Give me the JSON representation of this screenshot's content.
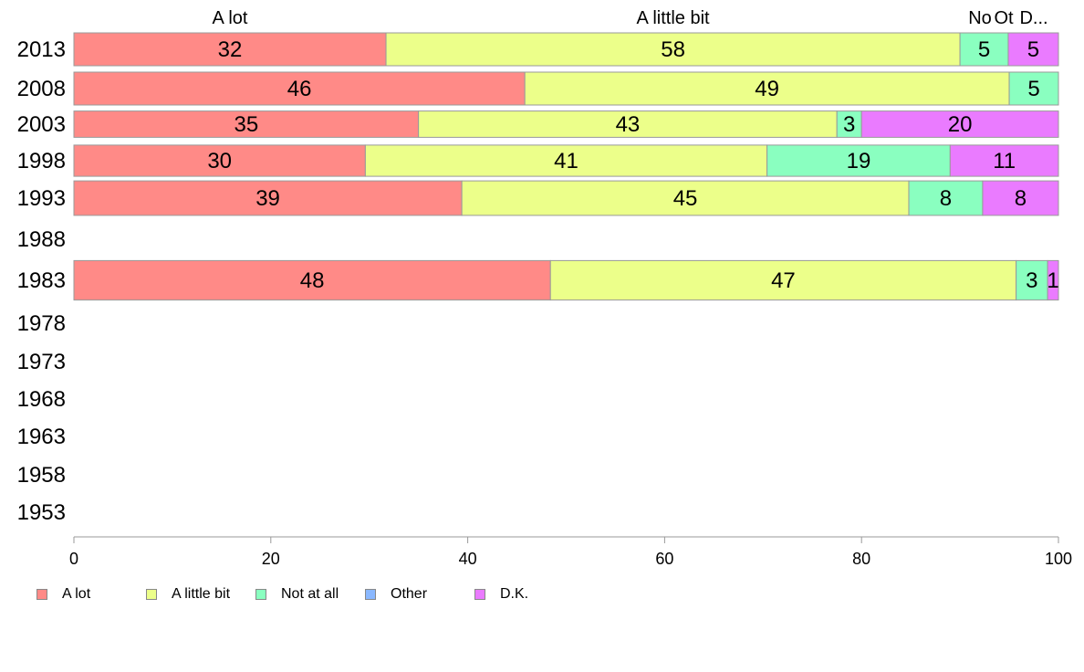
{
  "chart_data": {
    "type": "bar",
    "orientation": "horizontal",
    "stacked": true,
    "categories": [
      "2013",
      "2008",
      "2003",
      "1998",
      "1993",
      "1988",
      "1983",
      "1978",
      "1973",
      "1968",
      "1963",
      "1958",
      "1953"
    ],
    "series": [
      {
        "name": "A lot",
        "color": "#ff8a87",
        "values": [
          31.7,
          45.8,
          35.0,
          29.6,
          39.4,
          null,
          48.4,
          null,
          null,
          null,
          null,
          null,
          null
        ],
        "labels": [
          "32",
          "46",
          "35",
          "30",
          "39",
          "",
          "48",
          "",
          "",
          "",
          "",
          "",
          ""
        ]
      },
      {
        "name": "A little bit",
        "color": "#ecff8a",
        "values": [
          58.3,
          49.2,
          42.5,
          40.8,
          45.4,
          null,
          47.3,
          null,
          null,
          null,
          null,
          null,
          null
        ],
        "labels": [
          "58",
          "49",
          "43",
          "41",
          "45",
          "",
          "47",
          "",
          "",
          "",
          "",
          "",
          ""
        ]
      },
      {
        "name": "Not at all",
        "color": "#8affc0",
        "values": [
          4.9,
          5.0,
          2.5,
          18.6,
          7.5,
          null,
          3.2,
          null,
          null,
          null,
          null,
          null,
          null
        ],
        "labels": [
          "5",
          "5",
          "3",
          "19",
          "8",
          "",
          "3",
          "",
          "",
          "",
          "",
          "",
          ""
        ]
      },
      {
        "name": "Other",
        "color": "#8ab8ff",
        "values": [
          0,
          0,
          0,
          0,
          0,
          null,
          0,
          null,
          null,
          null,
          null,
          null,
          null
        ],
        "labels": [
          "",
          "",
          "",
          "",
          "",
          "",
          "",
          "",
          "",
          "",
          "",
          "",
          ""
        ]
      },
      {
        "name": "D.K.",
        "color": "#ea7bff",
        "values": [
          5.1,
          0,
          20.0,
          11.0,
          7.7,
          null,
          1.1,
          null,
          null,
          null,
          null,
          null,
          null
        ],
        "labels": [
          "5",
          "",
          "20",
          "11",
          "8",
          "",
          "1",
          "",
          "",
          "",
          "",
          "",
          ""
        ]
      }
    ],
    "bar_thickness": [
      1.0,
      1.0,
      0.8,
      0.95,
      1.05,
      0,
      1.2,
      0,
      0,
      0,
      0,
      0,
      0
    ],
    "top_labels": [
      "A lot",
      "A little bit",
      "No",
      "Ot",
      "D..."
    ],
    "xlim": [
      0,
      100
    ],
    "xticks": [
      "0",
      "20",
      "40",
      "60",
      "80",
      "100"
    ],
    "grid": false,
    "legend": {
      "position": "bottom-left",
      "entries": [
        "A lot",
        "A little bit",
        "Not at all",
        "Other",
        "D.K."
      ]
    }
  }
}
